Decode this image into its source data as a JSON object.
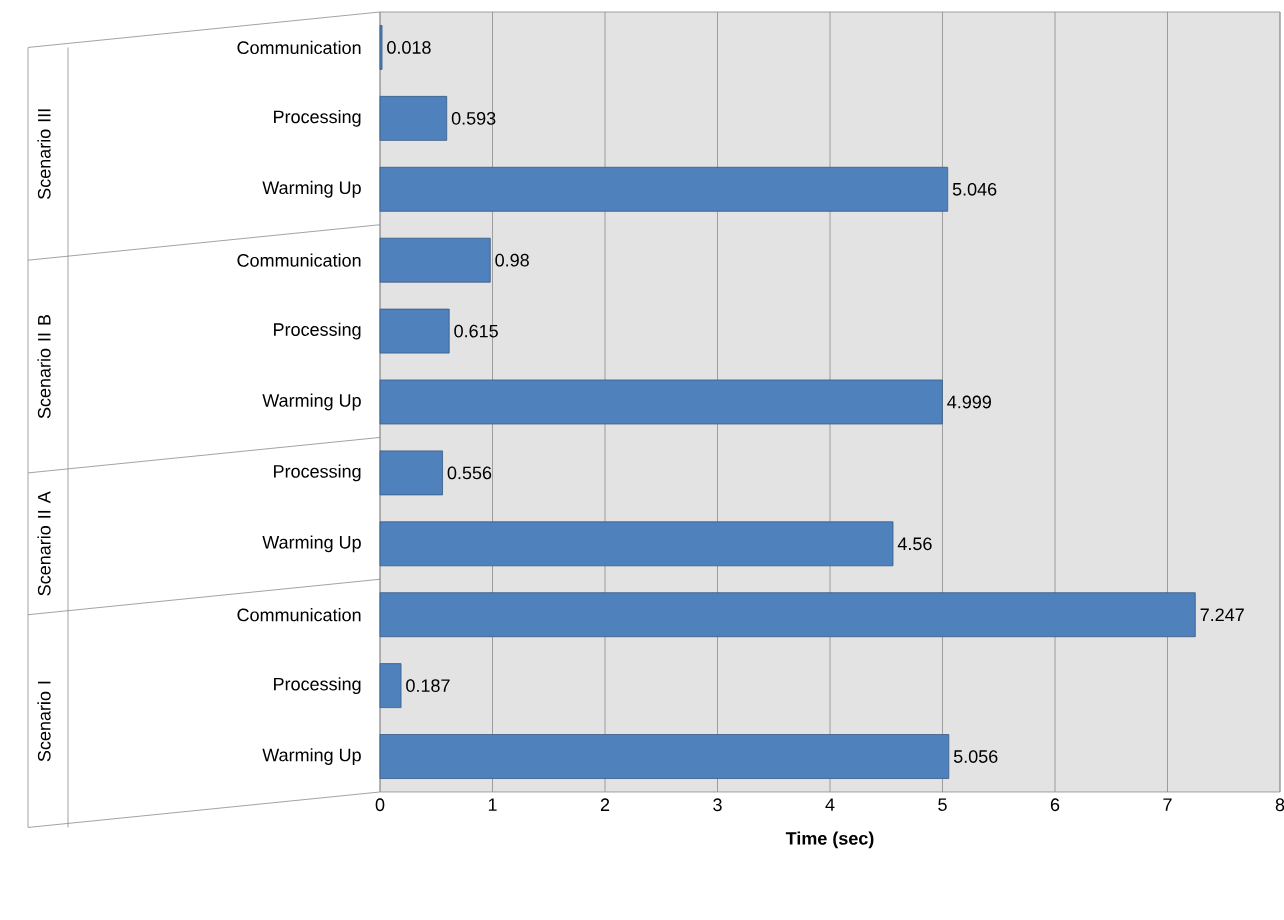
{
  "chart_data": {
    "type": "bar",
    "orientation": "horizontal",
    "categories": [
      "Communication",
      "Processing",
      "Warming Up",
      "Communication",
      "Processing",
      "Warming Up",
      "Processing",
      "Warming Up",
      "Communication",
      "Processing",
      "Warming Up"
    ],
    "values": [
      0.018,
      0.593,
      5.046,
      0.98,
      0.615,
      4.999,
      0.556,
      4.56,
      7.247,
      0.187,
      5.056
    ],
    "color": "#4f81bd",
    "xlim": [
      0,
      8
    ],
    "xticks": [
      0,
      1,
      2,
      3,
      4,
      5,
      6,
      7,
      8
    ],
    "xlabel": "Time (sec)",
    "grid": "x",
    "data_labels": true,
    "annotations": [
      "Scenario III",
      "Scenario II B",
      "Scenario II A",
      "Scenario I"
    ]
  }
}
